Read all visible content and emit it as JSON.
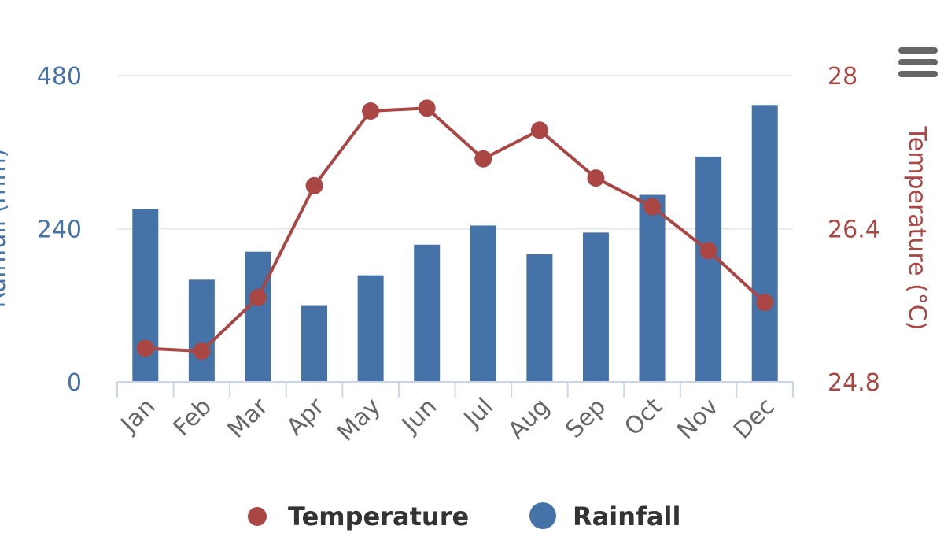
{
  "chart_data": {
    "type": "bar+line",
    "categories": [
      "Jan",
      "Feb",
      "Mar",
      "Apr",
      "May",
      "Jun",
      "Jul",
      "Aug",
      "Sep",
      "Oct",
      "Nov",
      "Dec"
    ],
    "series": [
      {
        "name": "Rainfall",
        "type": "bar",
        "axis": "left",
        "color": "#4572a7",
        "values": [
          271,
          160,
          204,
          119,
          167,
          215,
          245,
          200,
          234,
          293,
          353,
          434
        ]
      },
      {
        "name": "Temperature",
        "type": "line",
        "axis": "right",
        "color": "#aa4643",
        "values": [
          25.15,
          25.12,
          25.68,
          26.85,
          27.63,
          27.66,
          27.13,
          27.43,
          26.93,
          26.63,
          26.17,
          25.63
        ]
      }
    ],
    "left_axis": {
      "title": "Rainfall (mm)",
      "range": [
        0,
        480
      ],
      "ticks": [
        "0",
        "240",
        "480"
      ]
    },
    "right_axis": {
      "title": "Temperature (°C)",
      "range": [
        24.8,
        28
      ],
      "ticks": [
        "24.8",
        "26.4",
        "28"
      ]
    },
    "grid": true,
    "legend": {
      "position": "bottom-center",
      "items": [
        "Temperature",
        "Rainfall"
      ]
    }
  },
  "colors": {
    "rain": "#4572a7",
    "temp": "#aa4643",
    "grid": "#e6e6e6",
    "axis": "#ccd6eb",
    "label": "#666666"
  }
}
